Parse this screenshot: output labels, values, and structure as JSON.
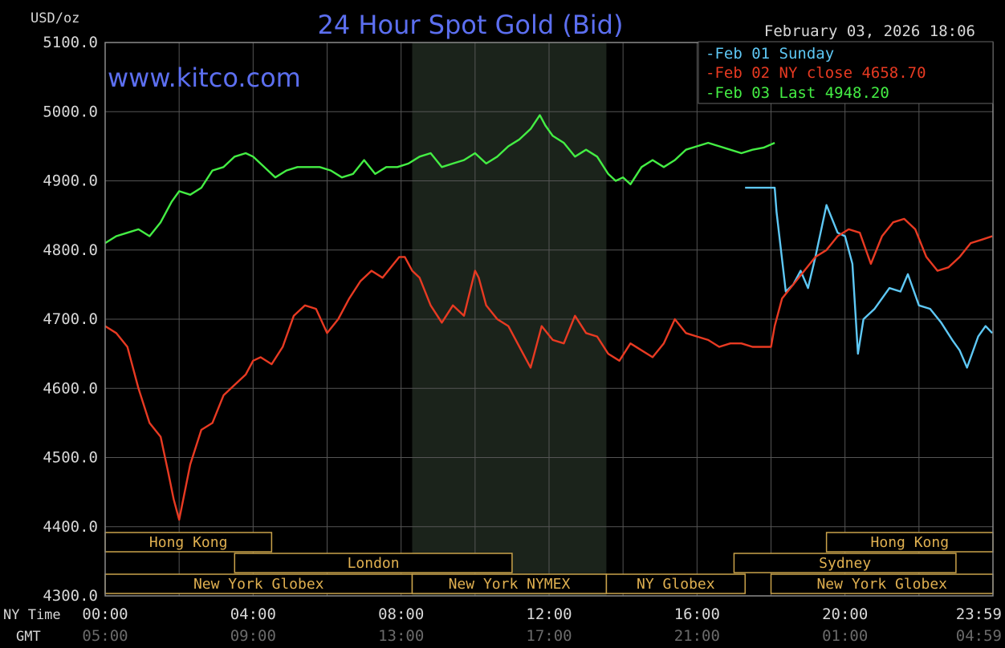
{
  "chart_data": {
    "type": "line",
    "title": "24 Hour Spot Gold (Bid)",
    "units_label": "USD/oz",
    "watermark": "www.kitco.com",
    "timestamp": "February 03, 2026 18:06",
    "ylim": [
      4300,
      5100
    ],
    "y_ticks": [
      "5100.0",
      "5000.0",
      "4900.0",
      "4800.0",
      "4700.0",
      "4600.0",
      "4500.0",
      "4400.0",
      "4300.0"
    ],
    "xlim_hours": [
      0,
      24
    ],
    "x_axis_rows": [
      {
        "name": "NY Time",
        "ticks": [
          "00:00",
          "04:00",
          "08:00",
          "12:00",
          "16:00",
          "20:00",
          "23:59"
        ]
      },
      {
        "name": "GMT",
        "ticks": [
          "05:00",
          "09:00",
          "13:00",
          "17:00",
          "21:00",
          "01:00",
          "04:59"
        ]
      }
    ],
    "x_tick_hours": [
      0,
      4,
      8,
      12,
      16,
      20,
      24
    ],
    "grid": true,
    "highlight_band_hours": [
      8.3,
      13.55
    ],
    "legend": {
      "placement": "top-right",
      "entries": [
        {
          "label": "Feb 01 Sunday",
          "color": "#5ec8f5"
        },
        {
          "label": "Feb 02 NY close 4658.70",
          "color": "#e83a22"
        },
        {
          "label": "Feb 03 Last 4948.20",
          "color": "#44ee44"
        }
      ]
    },
    "sessions": [
      {
        "row": 0,
        "label": "Hong Kong",
        "start": 0,
        "end": 4.5
      },
      {
        "row": 0,
        "label": "Hong Kong",
        "start": 19.5,
        "end": 24
      },
      {
        "row": 1,
        "label": "London",
        "start": 3.5,
        "end": 11
      },
      {
        "row": 1,
        "label": "Sydney",
        "start": 17,
        "end": 23
      },
      {
        "row": 2,
        "label": "New York Globex",
        "start": 0,
        "end": 8.3
      },
      {
        "row": 2,
        "label": "New York NYMEX",
        "start": 8.3,
        "end": 13.55
      },
      {
        "row": 2,
        "label": "NY Globex",
        "start": 13.55,
        "end": 17.3
      },
      {
        "row": 2,
        "label": "New York Globex",
        "start": 18,
        "end": 24
      }
    ],
    "series": [
      {
        "name": "Feb 01 Sunday",
        "color": "#5ec8f5",
        "x": [
          17.3,
          18.1,
          18.15,
          18.4,
          18.6,
          18.8,
          19.0,
          19.2,
          19.5,
          19.8,
          20.0,
          20.2,
          20.35,
          20.5,
          20.8,
          21.2,
          21.5,
          21.7,
          22.0,
          22.3,
          22.6,
          22.9,
          23.1,
          23.3,
          23.6,
          23.8,
          23.98
        ],
        "values": [
          4890,
          4890,
          4855,
          4740,
          4750,
          4770,
          4745,
          4790,
          4865,
          4825,
          4820,
          4780,
          4650,
          4700,
          4715,
          4745,
          4740,
          4765,
          4720,
          4715,
          4695,
          4670,
          4655,
          4630,
          4675,
          4690,
          4680
        ]
      },
      {
        "name": "Feb 02 NY close 4658.70",
        "color": "#e83a22",
        "x": [
          0,
          0.3,
          0.6,
          0.9,
          1.2,
          1.5,
          1.7,
          1.85,
          2.0,
          2.3,
          2.6,
          2.9,
          3.2,
          3.5,
          3.8,
          4.0,
          4.2,
          4.5,
          4.8,
          5.1,
          5.4,
          5.7,
          6.0,
          6.3,
          6.6,
          6.9,
          7.2,
          7.5,
          7.8,
          7.95,
          8.1,
          8.3,
          8.5,
          8.8,
          9.1,
          9.4,
          9.7,
          10.0,
          10.1,
          10.3,
          10.6,
          10.9,
          11.2,
          11.5,
          11.8,
          12.1,
          12.4,
          12.7,
          13.0,
          13.3,
          13.6,
          13.9,
          14.2,
          14.5,
          14.8,
          15.1,
          15.4,
          15.7,
          16.0,
          16.3,
          16.6,
          16.9,
          17.2,
          17.5,
          18.0,
          18.1,
          18.3,
          18.6,
          18.9,
          19.2,
          19.5,
          19.8,
          20.1,
          20.4,
          20.7,
          21.0,
          21.3,
          21.6,
          21.9,
          22.2,
          22.5,
          22.8,
          23.1,
          23.4,
          23.7,
          23.98
        ],
        "values": [
          4690,
          4680,
          4660,
          4600,
          4550,
          4530,
          4480,
          4440,
          4410,
          4490,
          4540,
          4550,
          4590,
          4605,
          4620,
          4640,
          4645,
          4635,
          4660,
          4705,
          4720,
          4715,
          4680,
          4700,
          4730,
          4755,
          4770,
          4760,
          4780,
          4790,
          4790,
          4770,
          4760,
          4720,
          4695,
          4720,
          4705,
          4770,
          4760,
          4720,
          4700,
          4690,
          4660,
          4630,
          4690,
          4670,
          4665,
          4705,
          4680,
          4675,
          4650,
          4640,
          4665,
          4655,
          4645,
          4665,
          4700,
          4680,
          4675,
          4670,
          4660,
          4665,
          4665,
          4660,
          4660,
          4690,
          4730,
          4750,
          4770,
          4790,
          4800,
          4820,
          4830,
          4825,
          4780,
          4820,
          4840,
          4845,
          4830,
          4790,
          4770,
          4775,
          4790,
          4810,
          4815,
          4820
        ]
      },
      {
        "name": "Feb 03 Last 4948.20",
        "color": "#44ee44",
        "x": [
          0,
          0.3,
          0.6,
          0.9,
          1.2,
          1.5,
          1.8,
          2.0,
          2.3,
          2.6,
          2.9,
          3.2,
          3.5,
          3.8,
          4.0,
          4.3,
          4.6,
          4.9,
          5.2,
          5.5,
          5.8,
          6.1,
          6.4,
          6.7,
          7.0,
          7.3,
          7.6,
          7.9,
          8.2,
          8.5,
          8.8,
          9.1,
          9.4,
          9.7,
          10.0,
          10.3,
          10.6,
          10.9,
          11.2,
          11.5,
          11.75,
          11.9,
          12.1,
          12.4,
          12.7,
          13.0,
          13.3,
          13.6,
          13.8,
          14.0,
          14.2,
          14.5,
          14.8,
          15.1,
          15.4,
          15.7,
          16.0,
          16.3,
          16.6,
          16.9,
          17.2,
          17.5,
          17.8,
          18.1
        ],
        "values": [
          4810,
          4820,
          4825,
          4830,
          4820,
          4840,
          4870,
          4885,
          4880,
          4890,
          4915,
          4920,
          4935,
          4940,
          4935,
          4920,
          4905,
          4915,
          4920,
          4920,
          4920,
          4915,
          4905,
          4910,
          4930,
          4910,
          4920,
          4920,
          4925,
          4935,
          4940,
          4920,
          4925,
          4930,
          4940,
          4925,
          4935,
          4950,
          4960,
          4975,
          4995,
          4980,
          4965,
          4955,
          4935,
          4945,
          4935,
          4910,
          4900,
          4905,
          4895,
          4920,
          4930,
          4920,
          4930,
          4945,
          4950,
          4955,
          4950,
          4945,
          4940,
          4945,
          4948,
          4955
        ]
      }
    ]
  }
}
